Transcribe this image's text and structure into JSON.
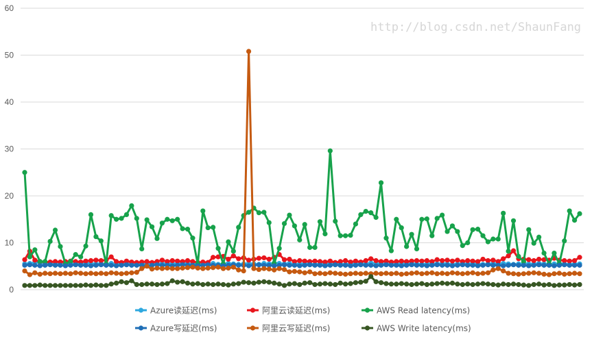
{
  "chart_data": {
    "type": "line",
    "title": "",
    "xlabel": "",
    "ylabel": "",
    "ylim": [
      0,
      60
    ],
    "yticks": [
      "0",
      "10",
      "20",
      "30",
      "40",
      "50",
      "60"
    ],
    "grid": true,
    "legend_placement": "bottom",
    "markers": true,
    "series": [
      {
        "name": "Azure读延迟(ms)",
        "color": "#2EA8DF",
        "values": [
          5.5,
          5.6,
          5.8,
          5.7,
          5.5,
          5.6,
          5.4,
          5.7,
          5.6,
          5.5,
          5.6,
          5.5,
          5.7,
          5.6,
          5.5,
          5.6,
          5.4,
          5.6,
          5.5,
          5.7,
          5.6,
          5.5,
          5.6,
          5.4,
          5.6,
          5.7,
          5.5,
          5.6,
          5.5,
          5.6,
          5.5,
          5.7,
          5.6,
          5.5,
          5.4,
          5.6,
          5.5,
          5.6,
          5.4,
          5.5,
          5.6,
          5.5,
          5.4,
          5.5,
          5.6,
          5.5,
          5.4,
          5.6,
          5.5,
          5.7,
          5.6,
          5.5,
          5.6,
          5.4,
          5.5,
          5.6,
          5.5,
          5.4,
          5.5,
          5.6,
          5.5,
          5.6,
          5.5,
          5.4,
          5.6,
          5.5,
          5.6,
          5.5,
          5.7,
          5.6,
          5.5,
          5.6,
          5.4,
          5.5,
          5.6,
          5.5,
          5.6,
          5.5,
          5.4,
          5.5,
          5.6,
          5.5,
          5.6,
          5.5,
          5.4,
          5.5,
          5.6,
          5.5,
          5.6,
          5.5,
          5.4,
          5.5,
          5.6,
          5.5,
          5.6,
          5.5,
          5.4,
          5.5,
          5.6,
          5.5,
          5.5,
          5.6,
          5.5,
          5.4,
          5.5,
          5.6,
          5.5,
          5.4,
          5.5,
          5.5
        ]
      },
      {
        "name": "阿里云读延迟(ms)",
        "color": "#E8161D",
        "values": [
          6.4,
          8.2,
          6.3,
          6.0,
          5.9,
          5.9,
          6.0,
          5.9,
          6.0,
          6.1,
          6.0,
          5.9,
          6.1,
          6.2,
          6.3,
          6.2,
          6.3,
          7.0,
          6.0,
          5.8,
          6.1,
          5.9,
          5.8,
          5.9,
          6.0,
          5.8,
          6.0,
          6.3,
          6.0,
          6.2,
          6.1,
          6.0,
          6.2,
          6.0,
          5.8,
          5.9,
          5.8,
          6.9,
          7.0,
          7.1,
          6.5,
          7.2,
          6.6,
          6.8,
          6.3,
          6.5,
          6.7,
          6.8,
          6.5,
          6.9,
          7.5,
          6.4,
          6.5,
          6.0,
          6.2,
          6.1,
          6.0,
          6.1,
          6.0,
          5.9,
          6.1,
          5.8,
          6.0,
          6.2,
          5.9,
          6.1,
          5.9,
          6.2,
          6.6,
          6.2,
          6.0,
          6.1,
          5.9,
          6.0,
          6.1,
          6.0,
          6.1,
          6.2,
          6.1,
          6.2,
          6.0,
          6.4,
          6.2,
          6.3,
          6.1,
          6.3,
          6.0,
          6.2,
          6.1,
          6.0,
          6.5,
          6.2,
          6.3,
          6.0,
          6.6,
          7.2,
          8.3,
          6.6,
          6.5,
          6.4,
          6.2,
          6.5,
          6.4,
          6.3,
          6.7,
          6.3,
          6.2,
          6.1,
          6.2,
          6.9
        ]
      },
      {
        "name": "AWS Read latency(ms)",
        "color": "#17A24B",
        "values": [
          25,
          7,
          8.5,
          6,
          6,
          10.3,
          12.7,
          9.2,
          5.5,
          6,
          7.5,
          7,
          9.3,
          16,
          11.3,
          10.4,
          5.5,
          15.8,
          15,
          15.2,
          16,
          17.9,
          15.2,
          8.7,
          14.9,
          13.4,
          10.9,
          14.2,
          15,
          14.7,
          15,
          13,
          12.9,
          11,
          5.5,
          16.8,
          13.2,
          13.3,
          8.8,
          5.5,
          10.2,
          8.2,
          13.3,
          15.8,
          16.5,
          17.4,
          16.4,
          16.5,
          14.3,
          5.6,
          8.8,
          14.1,
          15.9,
          13.6,
          10.6,
          13.9,
          9,
          9,
          14.5,
          11.9,
          29.6,
          14.6,
          11.5,
          11.5,
          11.6,
          14,
          16,
          16.7,
          16.4,
          15.4,
          22.8,
          11,
          8.3,
          15,
          13.2,
          9.2,
          11.8,
          8.7,
          15,
          15.1,
          11.5,
          15.2,
          15.9,
          12.4,
          13.6,
          12.4,
          9.4,
          10,
          12.8,
          12.9,
          11.5,
          10.2,
          10.8,
          10.8,
          16.3,
          8.2,
          14.7,
          7.1,
          6,
          12.8,
          9.9,
          11.2,
          7.8,
          5.5,
          7.8,
          5.5,
          10.4,
          16.8,
          14.8,
          16.2
        ]
      },
      {
        "name": "Azure写延迟(ms)",
        "color": "#1F6EB6",
        "values": [
          5.2,
          5.3,
          5.2,
          5.1,
          5.2,
          5.3,
          5.2,
          5.2,
          5.1,
          5.2,
          5.3,
          5.2,
          5.2,
          5.1,
          5.2,
          5.3,
          5.2,
          5.2,
          5.1,
          5.2,
          5.3,
          5.2,
          5.2,
          5.2,
          5.1,
          5.2,
          5.3,
          5.2,
          5.2,
          5.1,
          5.2,
          5.3,
          5.2,
          5.2,
          5.1,
          5.2,
          5.3,
          5.2,
          5.2,
          5.1,
          5.2,
          5.3,
          5.2,
          5.2,
          5.1,
          5.2,
          5.3,
          5.2,
          5.2,
          5.1,
          5.2,
          5.3,
          5.2,
          5.2,
          5.1,
          5.2,
          5.3,
          5.2,
          5.2,
          5.1,
          5.2,
          5.3,
          5.2,
          5.2,
          5.1,
          5.2,
          5.3,
          5.2,
          5.2,
          5.1,
          5.2,
          5.3,
          5.2,
          5.2,
          5.1,
          5.2,
          5.3,
          5.2,
          5.2,
          5.1,
          5.2,
          5.3,
          5.2,
          5.2,
          5.1,
          5.2,
          5.3,
          5.2,
          5.2,
          5.1,
          5.2,
          5.3,
          5.2,
          5.2,
          5.1,
          5.2,
          5.3,
          5.2,
          5.2,
          5.1,
          5.2,
          5.3,
          5.2,
          5.2,
          5.1,
          5.2,
          5.3,
          5.2,
          5.2,
          5.2
        ]
      },
      {
        "name": "阿里云写延迟(ms)",
        "color": "#C55A11",
        "values": [
          4.0,
          3.2,
          3.6,
          3.3,
          3.5,
          3.4,
          3.5,
          3.4,
          3.5,
          3.4,
          3.6,
          3.5,
          3.4,
          3.5,
          3.4,
          3.5,
          3.4,
          3.6,
          3.5,
          3.4,
          3.5,
          3.6,
          3.7,
          4.5,
          5.0,
          4.4,
          4.6,
          4.5,
          4.6,
          4.5,
          4.5,
          4.6,
          4.7,
          4.8,
          4.6,
          4.5,
          4.6,
          4.7,
          4.8,
          4.5,
          4.6,
          4.8,
          4.2,
          4.0,
          50.8,
          4.5,
          4.3,
          4.5,
          4.4,
          4.2,
          4.5,
          4.3,
          3.8,
          3.9,
          3.8,
          3.6,
          3.8,
          3.4,
          3.5,
          3.4,
          3.6,
          3.5,
          3.4,
          3.3,
          3.4,
          3.5,
          3.4,
          3.5,
          3.4,
          3.5,
          3.4,
          3.5,
          3.4,
          3.5,
          3.3,
          3.4,
          3.5,
          3.6,
          3.4,
          3.5,
          3.6,
          3.4,
          3.5,
          3.4,
          3.6,
          3.5,
          3.4,
          3.5,
          3.6,
          3.4,
          3.5,
          3.6,
          4.2,
          4.5,
          4.0,
          3.5,
          3.4,
          3.3,
          3.4,
          3.5,
          3.6,
          3.5,
          3.3,
          3.2,
          3.4,
          3.5,
          3.3,
          3.4,
          3.5,
          3.4
        ]
      },
      {
        "name": "AWS Write latency(ms)",
        "color": "#375623",
        "values": [
          0.9,
          0.9,
          0.9,
          1.0,
          0.9,
          0.9,
          0.9,
          0.9,
          0.9,
          0.9,
          0.9,
          0.9,
          1.0,
          0.9,
          1.0,
          0.9,
          0.9,
          1.2,
          1.4,
          1.7,
          1.5,
          1.9,
          1.1,
          1.1,
          1.2,
          1.2,
          1.1,
          1.2,
          1.3,
          1.9,
          1.6,
          1.7,
          1.4,
          1.2,
          1.3,
          1.1,
          1.2,
          1.1,
          1.2,
          1.1,
          1.0,
          1.2,
          1.3,
          1.6,
          1.5,
          1.4,
          1.6,
          1.7,
          1.6,
          1.4,
          1.2,
          0.9,
          1.2,
          1.3,
          1.1,
          1.4,
          1.5,
          1.1,
          1.2,
          1.3,
          1.2,
          1.1,
          1.4,
          1.2,
          1.3,
          1.5,
          1.6,
          1.8,
          2.8,
          1.7,
          1.5,
          1.3,
          1.2,
          1.2,
          1.3,
          1.2,
          1.1,
          1.2,
          1.3,
          1.1,
          1.2,
          1.3,
          1.4,
          1.3,
          1.4,
          1.2,
          1.1,
          1.2,
          1.1,
          1.2,
          1.3,
          1.2,
          1.1,
          1.0,
          1.2,
          1.1,
          1.2,
          1.1,
          1.0,
          0.9,
          1.1,
          1.2,
          1.0,
          1.1,
          0.9,
          1.0,
          1.0,
          1.1,
          1.0,
          1.1
        ]
      }
    ]
  },
  "legend_order": [
    0,
    1,
    2,
    3,
    4,
    5
  ],
  "watermark": "http://blog.csdn.net/ShaunFang"
}
